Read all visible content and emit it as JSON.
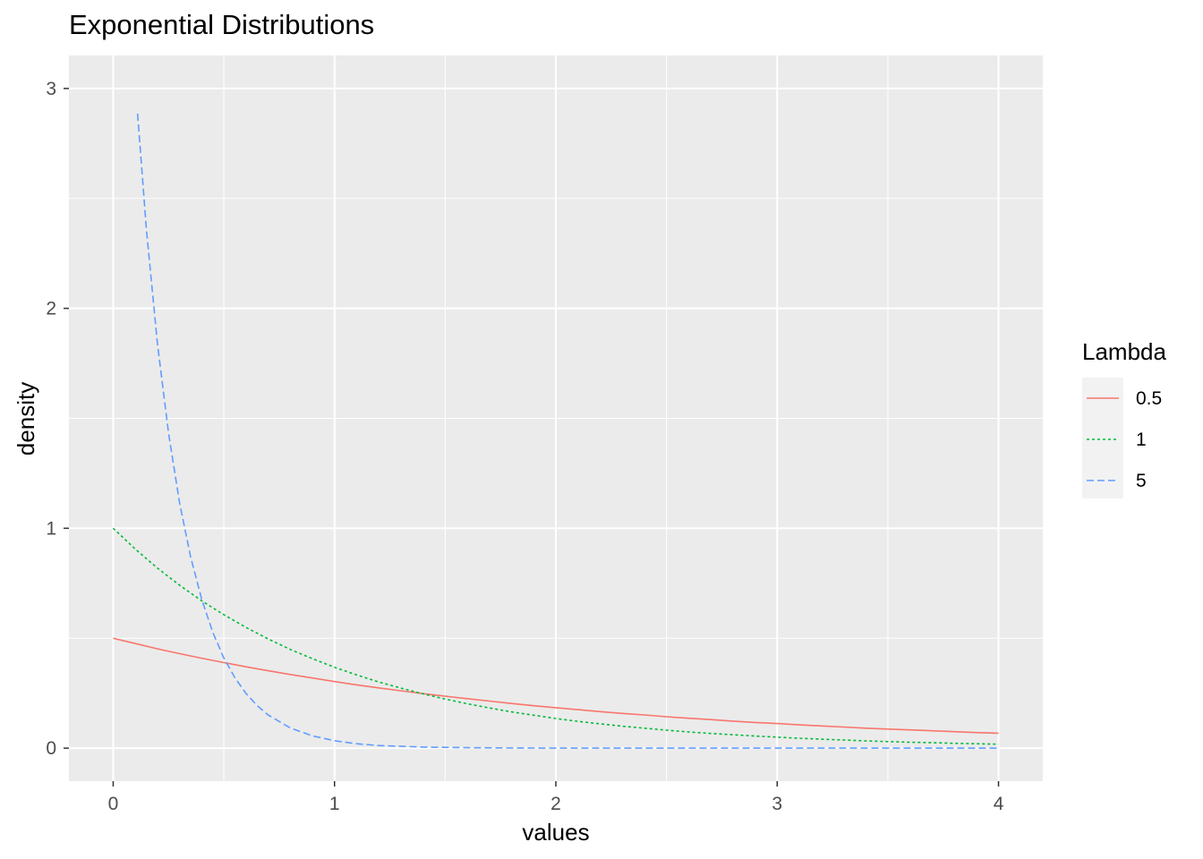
{
  "chart_data": {
    "type": "line",
    "title": "Exponential Distributions",
    "xlabel": "values",
    "ylabel": "density",
    "xlim": [
      -0.2,
      4.2
    ],
    "ylim": [
      -0.15,
      3.15
    ],
    "x_ticks": [
      0,
      1,
      2,
      3,
      4
    ],
    "y_ticks": [
      0,
      1,
      2,
      3
    ],
    "x_tick_labels": [
      "0",
      "1",
      "2",
      "3",
      "4"
    ],
    "y_tick_labels": [
      "0",
      "1",
      "2",
      "3"
    ],
    "grid": true,
    "legend": {
      "title": "Lambda",
      "position": "right"
    },
    "series": [
      {
        "name": "0.5",
        "color": "#F8766D",
        "dash": "solid",
        "x": [
          0,
          0.1,
          0.2,
          0.3,
          0.4,
          0.5,
          0.6,
          0.7,
          0.8,
          0.9,
          1.0,
          1.1,
          1.2,
          1.3,
          1.4,
          1.5,
          1.6,
          1.7,
          1.8,
          1.9,
          2.0,
          2.1,
          2.2,
          2.3,
          2.4,
          2.5,
          2.6,
          2.7,
          2.8,
          2.9,
          3.0,
          3.1,
          3.2,
          3.3,
          3.4,
          3.5,
          3.6,
          3.7,
          3.8,
          3.9,
          4.0
        ],
        "y": [
          0.5,
          0.476,
          0.452,
          0.43,
          0.409,
          0.389,
          0.37,
          0.352,
          0.335,
          0.319,
          0.303,
          0.288,
          0.274,
          0.261,
          0.248,
          0.236,
          0.225,
          0.214,
          0.203,
          0.193,
          0.184,
          0.175,
          0.166,
          0.158,
          0.151,
          0.143,
          0.136,
          0.13,
          0.123,
          0.117,
          0.112,
          0.106,
          0.101,
          0.096,
          0.091,
          0.087,
          0.083,
          0.079,
          0.075,
          0.071,
          0.068
        ]
      },
      {
        "name": "1",
        "color": "#00BA38",
        "dash": "dotted",
        "x": [
          0,
          0.1,
          0.2,
          0.3,
          0.4,
          0.5,
          0.6,
          0.7,
          0.8,
          0.9,
          1.0,
          1.1,
          1.2,
          1.3,
          1.4,
          1.5,
          1.6,
          1.7,
          1.8,
          1.9,
          2.0,
          2.1,
          2.2,
          2.3,
          2.4,
          2.5,
          2.6,
          2.7,
          2.8,
          2.9,
          3.0,
          3.1,
          3.2,
          3.3,
          3.4,
          3.5,
          3.6,
          3.7,
          3.8,
          3.9,
          4.0
        ],
        "y": [
          1.0,
          0.905,
          0.819,
          0.741,
          0.67,
          0.607,
          0.549,
          0.497,
          0.449,
          0.407,
          0.368,
          0.333,
          0.301,
          0.273,
          0.247,
          0.223,
          0.202,
          0.183,
          0.165,
          0.15,
          0.135,
          0.122,
          0.111,
          0.1,
          0.091,
          0.082,
          0.074,
          0.067,
          0.061,
          0.055,
          0.05,
          0.045,
          0.041,
          0.037,
          0.033,
          0.03,
          0.027,
          0.025,
          0.022,
          0.02,
          0.018
        ]
      },
      {
        "name": "5",
        "color": "#619CFF",
        "dash": "dashed",
        "x": [
          0.11,
          0.15,
          0.2,
          0.25,
          0.3,
          0.35,
          0.4,
          0.45,
          0.5,
          0.55,
          0.6,
          0.65,
          0.7,
          0.8,
          0.9,
          1.0,
          1.1,
          1.2,
          1.4,
          1.6,
          1.8,
          2.0,
          2.5,
          3.0,
          3.5,
          4.0
        ],
        "y": [
          2.885,
          2.362,
          1.839,
          1.433,
          1.116,
          0.869,
          0.677,
          0.527,
          0.41,
          0.32,
          0.249,
          0.194,
          0.151,
          0.092,
          0.056,
          0.034,
          0.02,
          0.012,
          0.005,
          0.002,
          0.001,
          0.0,
          0.0,
          0.0,
          0.0,
          0.0
        ]
      }
    ]
  }
}
